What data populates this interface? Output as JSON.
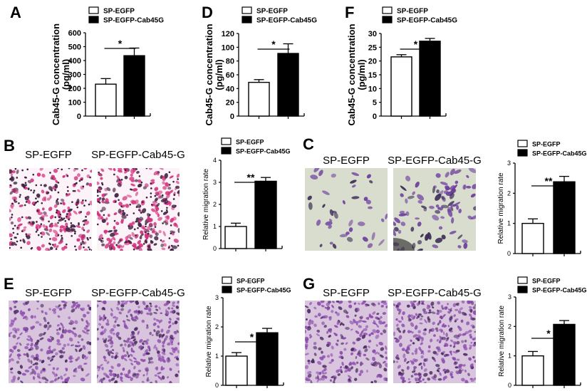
{
  "micrographs": [
    {
      "panel": "B",
      "titles": [
        "SP-EGFP",
        "SP-EGFP-Cab45-G"
      ],
      "stain_colors": {
        "background": "#fbf3f7",
        "cell": "#d2307c",
        "nucleus": "#3b2140"
      }
    },
    {
      "panel": "C",
      "titles": [
        "SP-EGFP",
        "SP-EGFP-Cab45-G"
      ],
      "stain_colors": {
        "background": "#d9ddcd",
        "cell": "#6b3c9e",
        "nucleus": "#3a2a55"
      }
    },
    {
      "panel": "E",
      "titles": [
        "SP-EGFP",
        "SP-EGFP-Cab45-G"
      ],
      "stain_colors": {
        "background": "#d8c5dd",
        "cell": "#8d4cad",
        "nucleus": "#4a2a60"
      }
    },
    {
      "panel": "G",
      "titles": [
        "SP-EGFP",
        "SP-EGFP-Cab45-G"
      ],
      "stain_colors": {
        "background": "#d9c6de",
        "cell": "#8a4aab",
        "nucleus": "#4a2a60"
      }
    }
  ],
  "chart_data": [
    {
      "panel": "A",
      "type": "bar",
      "legend": [
        "SP-EGFP",
        "SP-EGFP-Cab45G"
      ],
      "ylabel": [
        "Cab45-G concentration",
        "(pg/ml)"
      ],
      "ylim": [
        0,
        600
      ],
      "yticks": [
        "0",
        "100",
        "200",
        "300",
        "400",
        "500",
        "600"
      ],
      "values": [
        230,
        435
      ],
      "errors": [
        40,
        55
      ],
      "colors": [
        "#ffffff",
        "#000000"
      ],
      "significance": "*"
    },
    {
      "panel": "D",
      "type": "bar",
      "legend": [
        "SP-EGFP",
        "SP-EGFP-Cab45G"
      ],
      "ylabel": [
        "Cab45-G concentration",
        "(pg/ml)"
      ],
      "ylim": [
        0,
        120
      ],
      "yticks": [
        "0",
        "20",
        "40",
        "60",
        "80",
        "100",
        "120"
      ],
      "values": [
        49,
        91
      ],
      "errors": [
        4,
        14
      ],
      "colors": [
        "#ffffff",
        "#000000"
      ],
      "significance": "*"
    },
    {
      "panel": "F",
      "type": "bar",
      "legend": [
        "SP-EGFP",
        "SP-EGFP-Cab45G"
      ],
      "ylabel": [
        "Cab45-G concentration",
        "(pg/ml)"
      ],
      "ylim": [
        0,
        30
      ],
      "yticks": [
        "0",
        "5",
        "10",
        "15",
        "20",
        "25",
        "30"
      ],
      "values": [
        21.5,
        27.2
      ],
      "errors": [
        0.8,
        1.0
      ],
      "colors": [
        "#ffffff",
        "#000000"
      ],
      "significance": "*"
    },
    {
      "panel": "B",
      "type": "bar",
      "legend": [
        "SP-EGFP",
        "SP-EGFP-Cab45G"
      ],
      "ylabel": [
        "Relative migration rate"
      ],
      "ylim": [
        0,
        4
      ],
      "yticks": [
        "0",
        "1",
        "2",
        "3",
        "4"
      ],
      "values": [
        1.0,
        3.05
      ],
      "errors": [
        0.15,
        0.17
      ],
      "colors": [
        "#ffffff",
        "#000000"
      ],
      "significance": "**"
    },
    {
      "panel": "C",
      "type": "bar",
      "legend": [
        "SP-EGFP",
        "SP-EGFP-Cab45G"
      ],
      "ylabel": [
        "Relative migration rate"
      ],
      "ylim": [
        0,
        3
      ],
      "yticks": [
        "0",
        "1",
        "2",
        "3"
      ],
      "values": [
        1.0,
        2.38
      ],
      "errors": [
        0.15,
        0.18
      ],
      "colors": [
        "#ffffff",
        "#000000"
      ],
      "significance": "**"
    },
    {
      "panel": "E",
      "type": "bar",
      "legend": [
        "SP-EGFP",
        "SP-EGFP-Cab45G"
      ],
      "ylabel": [
        "Relative migration rate"
      ],
      "ylim": [
        0,
        3
      ],
      "yticks": [
        "0",
        "1",
        "2",
        "3"
      ],
      "values": [
        1.0,
        1.8
      ],
      "errors": [
        0.12,
        0.15
      ],
      "colors": [
        "#ffffff",
        "#000000"
      ],
      "significance": "*"
    },
    {
      "panel": "G",
      "type": "bar",
      "legend": [
        "SP-EGFP",
        "SP-EGFP-Cab45G"
      ],
      "ylabel": [
        "Relative migration rate"
      ],
      "ylim": [
        0,
        3
      ],
      "yticks": [
        "0",
        "1",
        "2",
        "3"
      ],
      "values": [
        1.0,
        2.07
      ],
      "errors": [
        0.15,
        0.13
      ],
      "colors": [
        "#ffffff",
        "#000000"
      ],
      "significance": "*"
    }
  ]
}
